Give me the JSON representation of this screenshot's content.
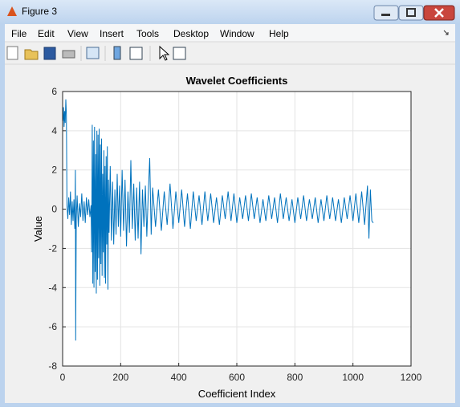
{
  "window": {
    "title": "Figure 3",
    "menu": [
      "File",
      "Edit",
      "View",
      "Insert",
      "Tools",
      "Desktop",
      "Window",
      "Help"
    ]
  },
  "chart_data": {
    "type": "line",
    "title": "Wavelet Coefficients",
    "x_label": "Coefficient Index",
    "y_label": "Value",
    "color": "#0072bd",
    "grid": true,
    "xlim": [
      0,
      1200
    ],
    "xticks": [
      0,
      200,
      400,
      600,
      800,
      1000,
      1200
    ],
    "ylim": [
      -8,
      6
    ],
    "yticks": [
      -8,
      -6,
      -4,
      -2,
      0,
      2,
      4,
      6
    ],
    "x": [
      1,
      3,
      5,
      7,
      9,
      11,
      13,
      15,
      18,
      21,
      24,
      27,
      30,
      33,
      36,
      39,
      42,
      44,
      45,
      47,
      50,
      54,
      58,
      62,
      66,
      70,
      74,
      78,
      82,
      86,
      90,
      94,
      98,
      100,
      102,
      104,
      106,
      108,
      110,
      112,
      114,
      116,
      118,
      120,
      122,
      124,
      126,
      128,
      130,
      132,
      134,
      136,
      138,
      140,
      142,
      144,
      146,
      148,
      150,
      152,
      154,
      156,
      158,
      160,
      164,
      168,
      172,
      176,
      180,
      184,
      188,
      192,
      196,
      200,
      205,
      210,
      215,
      220,
      225,
      230,
      235,
      240,
      245,
      250,
      255,
      260,
      265,
      270,
      275,
      280,
      285,
      290,
      295,
      300,
      305,
      310,
      320,
      330,
      340,
      350,
      360,
      370,
      380,
      390,
      400,
      410,
      420,
      430,
      440,
      450,
      460,
      470,
      480,
      490,
      500,
      510,
      520,
      530,
      540,
      550,
      560,
      570,
      580,
      590,
      600,
      610,
      620,
      630,
      640,
      650,
      660,
      670,
      680,
      690,
      700,
      710,
      720,
      730,
      740,
      750,
      760,
      770,
      780,
      790,
      800,
      810,
      820,
      830,
      840,
      850,
      860,
      870,
      880,
      890,
      900,
      910,
      920,
      930,
      940,
      950,
      960,
      970,
      980,
      990,
      1000,
      1010,
      1020,
      1030,
      1040,
      1050,
      1055,
      1060,
      1065,
      1070
    ],
    "values": [
      4.5,
      5.2,
      4.2,
      5.0,
      4.4,
      5.6,
      4.8,
      0.2,
      -0.5,
      0.6,
      -0.3,
      0.9,
      -0.8,
      0.4,
      -0.6,
      0.5,
      -1.0,
      2.0,
      -6.7,
      -0.5,
      0.7,
      -0.9,
      0.3,
      -0.4,
      0.8,
      -0.6,
      0.4,
      -0.7,
      0.6,
      -0.3,
      0.5,
      -0.4,
      0.2,
      -2.2,
      4.3,
      -3.8,
      3.5,
      -4.0,
      4.2,
      -3.2,
      2.8,
      -4.3,
      4.0,
      -3.6,
      3.8,
      -2.5,
      4.1,
      -3.9,
      3.3,
      -2.8,
      3.6,
      -3.4,
      1.8,
      -2.2,
      3.0,
      -3.5,
      2.2,
      -3.8,
      2.7,
      -1.8,
      3.2,
      -4.1,
      1.5,
      -1.2,
      2.2,
      -1.6,
      1.4,
      -1.8,
      1.0,
      -1.3,
      1.8,
      -0.9,
      1.2,
      -1.4,
      2.0,
      -1.1,
      1.5,
      -1.9,
      0.9,
      -1.2,
      2.5,
      -1.0,
      1.3,
      -1.6,
      1.1,
      -1.5,
      1.4,
      -2.3,
      1.0,
      -0.9,
      1.2,
      -1.4,
      0.8,
      2.6,
      -1.3,
      1.1,
      -0.9,
      1.0,
      -1.1,
      0.9,
      -0.8,
      1.3,
      -1.0,
      0.9,
      -0.7,
      1.0,
      -0.9,
      0.8,
      -1.0,
      0.9,
      -0.6,
      0.7,
      -0.8,
      0.9,
      -0.6,
      0.8,
      -0.7,
      0.6,
      -0.8,
      0.7,
      -0.5,
      0.9,
      -0.6,
      0.8,
      -0.7,
      0.6,
      -0.5,
      0.7,
      -0.6,
      0.8,
      -0.5,
      0.6,
      -0.7,
      0.5,
      -0.6,
      0.7,
      -0.5,
      0.6,
      -0.7,
      0.8,
      -0.5,
      0.6,
      -0.6,
      0.5,
      -0.7,
      0.6,
      -0.5,
      0.7,
      -0.6,
      0.5,
      -0.5,
      0.6,
      -0.7,
      0.5,
      -0.6,
      0.7,
      -0.5,
      0.6,
      -0.6,
      0.5,
      -0.7,
      0.6,
      -0.5,
      0.7,
      -0.6,
      0.8,
      -0.7,
      0.9,
      -0.8,
      1.2,
      -1.5,
      1.0,
      -0.6,
      -0.7
    ]
  }
}
